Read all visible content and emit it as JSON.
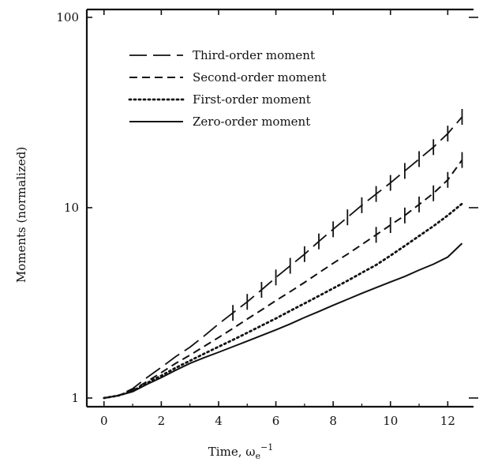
{
  "chart_data": {
    "type": "line",
    "xlabel": "Time, ω",
    "xlabel_sub": "e",
    "xlabel_sup": "−1",
    "ylabel": "Moments (normalized)",
    "xlim": [
      -0.6,
      12.9
    ],
    "ylim": [
      0.9,
      110
    ],
    "yscale": "log",
    "x_ticks": [
      0,
      2,
      4,
      6,
      8,
      10,
      12
    ],
    "x_tick_labels": [
      "0",
      "2",
      "4",
      "6",
      "8",
      "10",
      "12"
    ],
    "y_ticks": [
      1,
      10,
      100
    ],
    "y_tick_labels": [
      "1",
      "10",
      "100"
    ],
    "grid": false,
    "legend_position": "top-left",
    "series": [
      {
        "name": "Third-order moment",
        "style": "long-dash",
        "x": [
          0,
          0.5,
          1,
          1.5,
          2,
          2.5,
          3,
          3.5,
          4,
          4.5,
          5,
          5.5,
          6,
          6.5,
          7,
          7.5,
          8,
          8.5,
          9,
          9.5,
          10,
          10.5,
          11,
          11.5,
          12,
          12.5
        ],
        "y": [
          1.0,
          1.03,
          1.12,
          1.28,
          1.45,
          1.65,
          1.85,
          2.12,
          2.45,
          2.8,
          3.2,
          3.7,
          4.3,
          4.95,
          5.7,
          6.65,
          7.7,
          8.9,
          10.3,
          11.8,
          13.5,
          15.6,
          18.0,
          20.8,
          24.5,
          30.0
        ],
        "error_bar_from_x": 4.5
      },
      {
        "name": "Second-order moment",
        "style": "short-dash",
        "x": [
          0,
          0.5,
          1,
          1.5,
          2,
          2.5,
          3,
          3.5,
          4,
          4.5,
          5,
          5.5,
          6,
          6.5,
          7,
          7.5,
          8,
          8.5,
          9,
          9.5,
          10,
          10.5,
          11,
          11.5,
          12,
          12.5
        ],
        "y": [
          1.0,
          1.03,
          1.1,
          1.22,
          1.36,
          1.52,
          1.68,
          1.87,
          2.08,
          2.32,
          2.6,
          2.9,
          3.25,
          3.62,
          4.05,
          4.55,
          5.1,
          5.7,
          6.4,
          7.2,
          8.1,
          9.1,
          10.4,
          11.9,
          14.0,
          17.8
        ],
        "error_bar_from_x": 9.5
      },
      {
        "name": "First-order moment",
        "style": "dotted",
        "x": [
          0,
          0.5,
          1,
          1.5,
          2,
          2.5,
          3,
          3.5,
          4,
          4.5,
          5,
          5.5,
          6,
          6.5,
          7,
          7.5,
          8,
          8.5,
          9,
          9.5,
          10,
          10.5,
          11,
          11.5,
          12,
          12.5
        ],
        "y": [
          1.0,
          1.03,
          1.09,
          1.2,
          1.31,
          1.44,
          1.57,
          1.71,
          1.86,
          2.02,
          2.2,
          2.4,
          2.62,
          2.87,
          3.14,
          3.44,
          3.77,
          4.13,
          4.55,
          5.0,
          5.6,
          6.3,
          7.1,
          8.0,
          9.1,
          10.5
        ]
      },
      {
        "name": "Zero-order moment",
        "style": "solid",
        "x": [
          0,
          0.5,
          1,
          1.5,
          2,
          2.5,
          3,
          3.5,
          4,
          4.5,
          5,
          5.5,
          6,
          6.5,
          7,
          7.5,
          8,
          8.5,
          9,
          9.5,
          10,
          10.5,
          11,
          11.5,
          12,
          12.5
        ],
        "y": [
          1.0,
          1.03,
          1.08,
          1.18,
          1.28,
          1.4,
          1.52,
          1.63,
          1.74,
          1.86,
          1.99,
          2.13,
          2.28,
          2.45,
          2.65,
          2.85,
          3.07,
          3.3,
          3.55,
          3.8,
          4.07,
          4.35,
          4.7,
          5.05,
          5.5,
          6.5
        ]
      }
    ]
  }
}
